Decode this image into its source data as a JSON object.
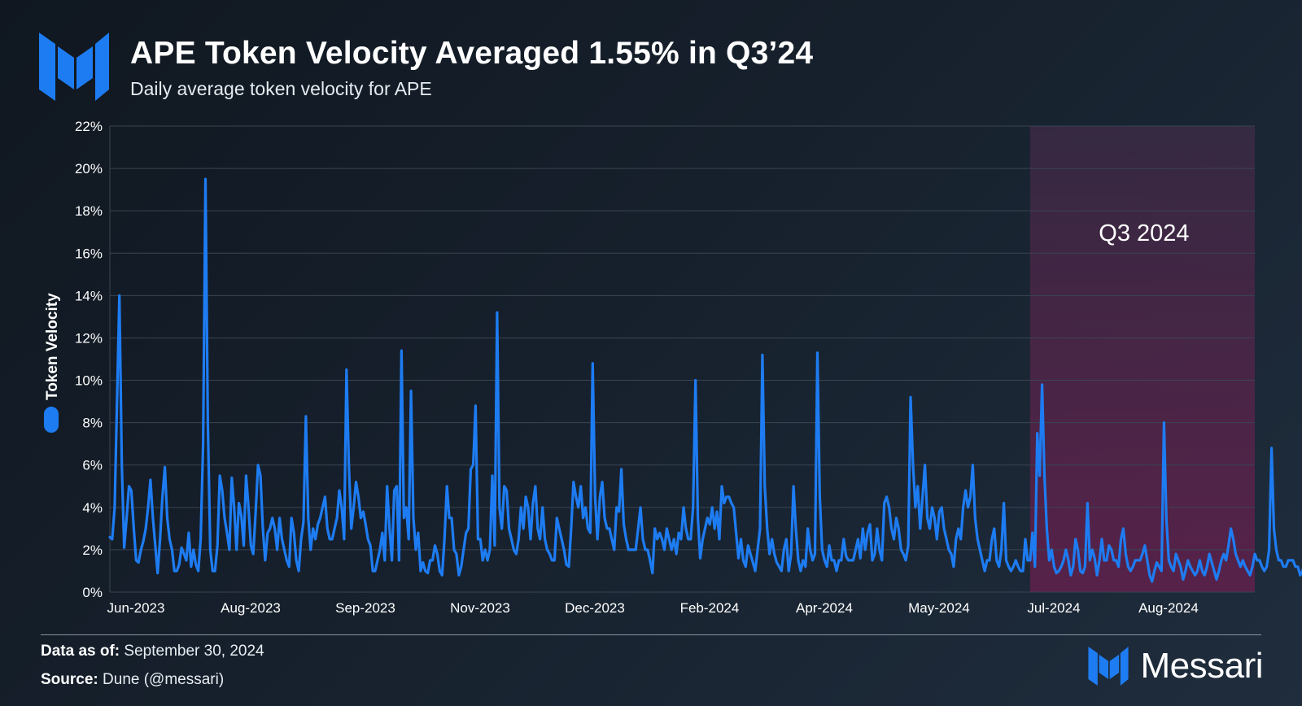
{
  "header": {
    "title": "APE Token Velocity Averaged 1.55% in Q3’24",
    "subtitle": "Daily average token velocity for APE"
  },
  "footer": {
    "data_as_of_label": "Data as of:",
    "data_as_of_value": "September 30, 2024",
    "source_label": "Source:",
    "source_value": "Dune (@messari)",
    "brand": "Messari"
  },
  "colors": {
    "line": "#1e7cf2",
    "highlight_top": "#5a2a48",
    "highlight_bottom": "#6a2050",
    "grid": "#3a4552",
    "text": "#ffffff",
    "logo": "#1e7cf2"
  },
  "chart_data": {
    "type": "line",
    "title": "APE Token Velocity Averaged 1.55% in Q3’24",
    "ylabel": "Token Velocity",
    "xlabel": "",
    "ylim": [
      0,
      22
    ],
    "yticks": [
      0,
      2,
      4,
      6,
      8,
      10,
      12,
      14,
      16,
      18,
      20,
      22
    ],
    "ytick_labels": [
      "0%",
      "2%",
      "4%",
      "6%",
      "8%",
      "10%",
      "12%",
      "14%",
      "16%",
      "18%",
      "20%",
      "22%"
    ],
    "xlim_days": [
      0,
      479
    ],
    "xticks_days": [
      0,
      48,
      96,
      144,
      192,
      240,
      288,
      336,
      384,
      432
    ],
    "xtick_labels": [
      "Jun-2023",
      "Aug-2023",
      "Sep-2023",
      "Nov-2023",
      "Dec-2023",
      "Feb-2024",
      "Apr-2024",
      "May-2024",
      "Jul-2024",
      "Aug-2024"
    ],
    "highlight": {
      "label": "Q3 2024",
      "start_day": 385,
      "end_day": 479
    },
    "legend": {
      "position": "left",
      "entries": [
        "Token Velocity"
      ]
    },
    "grid": true,
    "series": [
      {
        "name": "Token Velocity",
        "x_start_day": 0,
        "x_step_days": 1,
        "values": [
          2.6,
          2.5,
          4.0,
          9.0,
          14.0,
          6.0,
          2.1,
          3.5,
          5.0,
          4.8,
          3.0,
          1.5,
          1.4,
          2.0,
          2.4,
          3.0,
          4.0,
          5.3,
          3.5,
          2.2,
          0.9,
          2.5,
          4.5,
          5.9,
          3.5,
          2.5,
          2.0,
          1.0,
          1.0,
          1.3,
          2.1,
          1.8,
          1.5,
          2.8,
          1.2,
          2.0,
          1.3,
          1.0,
          2.5,
          7.0,
          19.5,
          8.0,
          2.0,
          1.0,
          1.0,
          2.2,
          5.5,
          4.8,
          3.5,
          2.8,
          2.0,
          5.4,
          4.0,
          2.0,
          4.2,
          3.6,
          2.2,
          5.5,
          4.0,
          2.2,
          1.8,
          3.8,
          6.0,
          5.5,
          3.0,
          1.5,
          2.8,
          3.0,
          3.5,
          3.0,
          2.0,
          3.5,
          2.5,
          2.0,
          1.5,
          1.2,
          3.5,
          2.8,
          1.5,
          1.0,
          2.5,
          3.3,
          8.3,
          3.5,
          2.0,
          3.0,
          2.5,
          3.2,
          3.5,
          4.0,
          4.5,
          3.0,
          2.5,
          2.5,
          3.0,
          3.5,
          4.8,
          4.0,
          2.5,
          10.5,
          6.0,
          3.0,
          4.0,
          5.2,
          4.5,
          3.5,
          3.8,
          3.2,
          2.5,
          2.2,
          1.0,
          1.0,
          1.5,
          2.0,
          2.8,
          1.5,
          5.0,
          3.0,
          1.5,
          4.8,
          5.0,
          1.5,
          11.4,
          3.5,
          4.0,
          2.5,
          9.5,
          3.5,
          2.0,
          2.8,
          1.0,
          1.4,
          1.0,
          0.9,
          1.5,
          1.5,
          2.2,
          1.8,
          1.0,
          0.8,
          2.5,
          5.0,
          3.5,
          3.5,
          2.0,
          1.8,
          0.8,
          1.2,
          2.0,
          2.8,
          3.0,
          5.8,
          6.0,
          8.8,
          2.5,
          2.5,
          1.5,
          2.0,
          1.5,
          2.0,
          5.5,
          2.2,
          13.2,
          4.0,
          3.0,
          5.0,
          4.8,
          3.0,
          2.5,
          2.0,
          1.8,
          2.5,
          4.0,
          3.0,
          4.5,
          4.0,
          2.5,
          4.2,
          5.0,
          3.0,
          2.5,
          4.0,
          2.5,
          2.0,
          1.8,
          1.5,
          1.5,
          3.5,
          3.0,
          2.5,
          2.0,
          1.3,
          1.2,
          3.0,
          5.2,
          4.5,
          4.0,
          5.0,
          3.5,
          4.0,
          3.0,
          2.8,
          10.8,
          4.5,
          2.5,
          4.5,
          5.2,
          3.5,
          3.0,
          3.0,
          2.5,
          2.0,
          4.0,
          3.8,
          5.8,
          3.2,
          2.5,
          2.0,
          2.0,
          2.0,
          2.0,
          3.0,
          4.0,
          2.5,
          2.0,
          2.0,
          1.5,
          0.9,
          3.0,
          2.5,
          2.8,
          2.5,
          2.0,
          3.0,
          2.5,
          2.0,
          2.5,
          1.8,
          2.8,
          2.5,
          4.0,
          3.0,
          2.5,
          2.5,
          4.0,
          10.0,
          3.5,
          1.6,
          2.5,
          3.0,
          3.5,
          3.2,
          4.0,
          3.0,
          3.8,
          2.5,
          5.0,
          4.2,
          4.5,
          4.5,
          4.2,
          4.0,
          2.8,
          1.6,
          2.5,
          1.5,
          1.2,
          2.2,
          1.8,
          1.4,
          1.0,
          2.0,
          3.0,
          11.2,
          5.0,
          3.0,
          1.8,
          2.5,
          1.8,
          1.4,
          1.2,
          1.0,
          2.0,
          2.5,
          1.0,
          1.8,
          5.0,
          3.0,
          1.5,
          1.0,
          1.5,
          1.2,
          3.0,
          2.0,
          1.5,
          1.8,
          11.3,
          4.5,
          2.0,
          1.5,
          1.2,
          2.2,
          1.5,
          1.5,
          1.0,
          1.5,
          1.5,
          2.5,
          1.7,
          1.5,
          1.5,
          1.5,
          2.0,
          2.5,
          1.6,
          3.0,
          2.0,
          2.8,
          3.2,
          1.5,
          1.8,
          3.0,
          2.0,
          1.5,
          4.2,
          4.5,
          4.0,
          3.0,
          2.5,
          3.5,
          3.0,
          2.0,
          1.8,
          1.5,
          2.2,
          9.2,
          6.0,
          4.0,
          5.0,
          3.0,
          4.5,
          6.0,
          3.5,
          3.0,
          4.0,
          3.5,
          2.5,
          3.8,
          4.0,
          3.0,
          2.5,
          2.0,
          1.8,
          1.2,
          2.5,
          3.0,
          2.5,
          4.0,
          4.8,
          4.0,
          4.5,
          6.0,
          3.5,
          2.5,
          2.0,
          1.5,
          1.0,
          1.5,
          1.5,
          2.5,
          3.0,
          1.5,
          1.2,
          2.0,
          4.2,
          1.5,
          1.2,
          1.0,
          1.2,
          1.5,
          1.2,
          1.0,
          1.0,
          2.5,
          1.5,
          1.5,
          2.8,
          1.2,
          7.5,
          5.5,
          9.8,
          5.5,
          3.0,
          1.5,
          2.0,
          1.2,
          0.9,
          1.0,
          1.2,
          1.5,
          2.0,
          1.5,
          0.8,
          1.2,
          2.5,
          2.0,
          1.0,
          0.9,
          1.2,
          4.2,
          1.5,
          2.0,
          1.6,
          0.8,
          1.5,
          2.5,
          1.5,
          1.5,
          2.2,
          2.0,
          1.5,
          1.5,
          1.2,
          2.5,
          3.0,
          1.8,
          1.2,
          1.0,
          1.2,
          1.5,
          1.5,
          1.5,
          1.8,
          2.2,
          1.5,
          0.8,
          0.5,
          1.0,
          1.4,
          1.2,
          1.0,
          8.0,
          3.5,
          1.5,
          1.2,
          1.0,
          1.8,
          1.5,
          1.2,
          0.6,
          1.0,
          1.5,
          1.2,
          1.0,
          0.8,
          1.0,
          1.5,
          1.0,
          0.8,
          1.2,
          1.8,
          1.4,
          1.0,
          0.6,
          1.0,
          1.5,
          1.8,
          1.5,
          2.2,
          3.0,
          2.5,
          1.8,
          1.5,
          1.2,
          1.5,
          1.2,
          1.0,
          0.8,
          1.2,
          1.8,
          1.5,
          1.5,
          1.2,
          1.0,
          1.2,
          2.0,
          6.8,
          3.0,
          2.0,
          1.5,
          1.5,
          1.2,
          1.2,
          1.5,
          1.5,
          1.5,
          1.2,
          1.2,
          0.8,
          1.0,
          1.5,
          1.2,
          1.0,
          1.5,
          1.8,
          1.5,
          2.0,
          1.5,
          1.2,
          1.2,
          1.0,
          1.0,
          1.2,
          1.5,
          2.2,
          1.0,
          1.0,
          1.8,
          1.5,
          1.0,
          2.0,
          1.5,
          1.5,
          1.2,
          0.8,
          1.0,
          1.5,
          1.2,
          1.0,
          1.0,
          1.2,
          1.8,
          1.5,
          1.2,
          1.0,
          1.5,
          1.8,
          1.2,
          1.0,
          0.8,
          1.2,
          1.5,
          1.0,
          0.8,
          1.5,
          2.0,
          1.5,
          1.2,
          3.3,
          2.5,
          1.5,
          1.0,
          1.2,
          1.0,
          3.2,
          1.5,
          1.2,
          1.0,
          1.2,
          1.5,
          2.5,
          1.5,
          1.0,
          1.2,
          3.0,
          4.5,
          2.5,
          1.5,
          1.2,
          1.0,
          1.0,
          1.5,
          2.2,
          2.5,
          2.0,
          1.5,
          1.0,
          1.2,
          1.5,
          1.5,
          1.8,
          1.2,
          0.6,
          0.8,
          1.5,
          2.2,
          1.5,
          1.2,
          1.0,
          1.2,
          1.8,
          1.0,
          1.2,
          1.5,
          1.0,
          0.8,
          1.5,
          1.8,
          1.0,
          1.2,
          1.0,
          0.8,
          1.5,
          1.5,
          1.2,
          1.0,
          1.2,
          2.0,
          2.0,
          2.5,
          1.5,
          1.5,
          2.2,
          2.0,
          1.2,
          2.0,
          1.5,
          2.0,
          2.2,
          2.0,
          1.5,
          1.2,
          1.0,
          1.2,
          1.5,
          1.0,
          0.6,
          0.8,
          1.0,
          1.2,
          1.5,
          2.0,
          1.5,
          1.2,
          3.5,
          1.5,
          1.2,
          1.0,
          0.8,
          1.2,
          1.5,
          1.5,
          1.2,
          1.0,
          0.6,
          0.5,
          0.8,
          1.2,
          1.8,
          1.5,
          1.2,
          1.5,
          2.0,
          2.2,
          1.5,
          1.2,
          0.8,
          1.0,
          1.5,
          2.0,
          1.5,
          1.2,
          5.2,
          1.5,
          1.2,
          5.5,
          3.0,
          1.5,
          5.5,
          2.0,
          2.0,
          3.0,
          2.5,
          2.0,
          6.5,
          5.0,
          2.5,
          1.8,
          1.5,
          1.2,
          1.0,
          0.8,
          0.5,
          0.5,
          0.8,
          1.2,
          1.5,
          1.2,
          0.8,
          0.6,
          0.6,
          0.8,
          1.2,
          3.0,
          1.0,
          1.2,
          4.0,
          2.0,
          1.0,
          0.8,
          1.0,
          1.5
        ],
        "values_note": "Daily series sampled at ~1-day resolution; values in percent"
      }
    ]
  }
}
